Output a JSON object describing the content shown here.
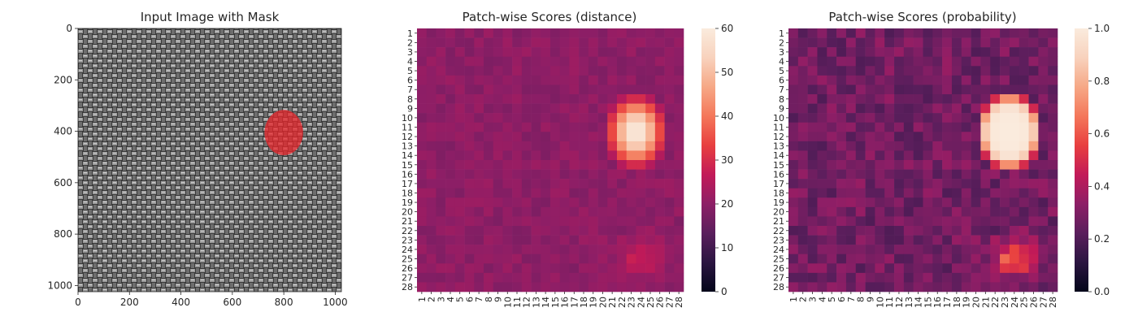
{
  "colors": {
    "mask": "#e8262b",
    "rocket": [
      "#03051a",
      "#2b1541",
      "#5a1e5c",
      "#8d1e66",
      "#c21a58",
      "#e83f3f",
      "#f4775a",
      "#f6a886",
      "#f8d2bd",
      "#faebdd"
    ]
  },
  "chart_data": [
    {
      "type": "image",
      "title": "Input Image with Mask",
      "x_ticks": [
        "0",
        "200",
        "400",
        "600",
        "800",
        "1000"
      ],
      "y_ticks": [
        "0",
        "200",
        "400",
        "600",
        "800",
        "1000"
      ],
      "xlim": [
        0,
        1024
      ],
      "ylim": [
        1024,
        0
      ],
      "image_description": "grayscale woven fabric texture",
      "mask": {
        "shape": "ellipse",
        "center": [
          800,
          405
        ],
        "radius_x": 75,
        "radius_y": 88,
        "color": "red"
      }
    },
    {
      "type": "heatmap",
      "title": "Patch-wise Scores (distance)",
      "rows": 28,
      "cols": 28,
      "x_ticks": [
        "1",
        "2",
        "3",
        "4",
        "5",
        "6",
        "7",
        "8",
        "9",
        "10",
        "11",
        "12",
        "13",
        "14",
        "15",
        "16",
        "17",
        "18",
        "19",
        "20",
        "21",
        "22",
        "23",
        "24",
        "25",
        "26",
        "27",
        "28"
      ],
      "y_ticks": [
        "1",
        "2",
        "3",
        "4",
        "5",
        "6",
        "7",
        "8",
        "9",
        "10",
        "11",
        "12",
        "13",
        "14",
        "15",
        "16",
        "17",
        "18",
        "19",
        "20",
        "21",
        "22",
        "23",
        "24",
        "25",
        "26",
        "27",
        "28"
      ],
      "colorbar": {
        "min": 0,
        "max": 60,
        "ticks": [
          "0",
          "10",
          "20",
          "30",
          "40",
          "50",
          "60"
        ]
      },
      "background_value": 20,
      "hotspot": {
        "center_row": 11.5,
        "center_col": 23.5,
        "peak": 60,
        "sigma_row": 3.0,
        "sigma_col": 2.4
      },
      "secondary_hotspot": {
        "center_row": 25,
        "center_col": 24,
        "peak": 8,
        "sigma_row": 1.2,
        "sigma_col": 1.5
      }
    },
    {
      "type": "heatmap",
      "title": "Patch-wise Scores (probability)",
      "rows": 28,
      "cols": 28,
      "x_ticks": [
        "1",
        "2",
        "3",
        "4",
        "5",
        "6",
        "7",
        "8",
        "9",
        "10",
        "11",
        "12",
        "13",
        "14",
        "15",
        "16",
        "17",
        "18",
        "19",
        "20",
        "21",
        "22",
        "23",
        "24",
        "25",
        "26",
        "27",
        "28"
      ],
      "y_ticks": [
        "1",
        "2",
        "3",
        "4",
        "5",
        "6",
        "7",
        "8",
        "9",
        "10",
        "11",
        "12",
        "13",
        "14",
        "15",
        "16",
        "17",
        "18",
        "19",
        "20",
        "21",
        "22",
        "23",
        "24",
        "25",
        "26",
        "27",
        "28"
      ],
      "colorbar": {
        "min": 0,
        "max": 1,
        "ticks": [
          "0.0",
          "0.2",
          "0.4",
          "0.6",
          "0.8",
          "1.0"
        ]
      },
      "threshold": 25,
      "steepness": 5
    }
  ]
}
